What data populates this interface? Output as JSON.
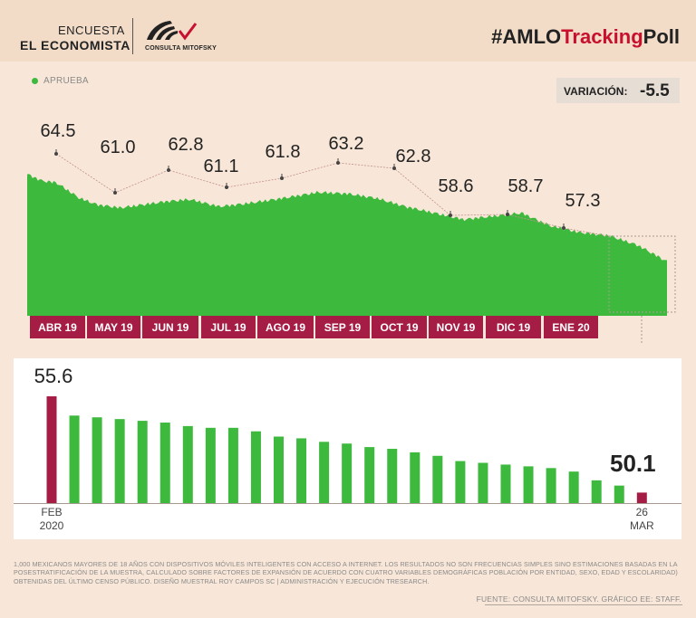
{
  "header": {
    "brand_line1": "ENCUESTA",
    "brand_line2": "EL ECONOMISTA",
    "partner": "CONSULTA MITOFSKY",
    "hashtag_prefix": "#AMLO",
    "hashtag_red": "Tracking",
    "hashtag_suffix": "Poll"
  },
  "legend": {
    "label": "APRUEBA"
  },
  "variacion": {
    "label": "VARIACIÓN:",
    "value": "-5.5"
  },
  "colors": {
    "approve": "#3dba3d",
    "bar": "#3dba3d",
    "highlight": "#a51c45",
    "month": "#a51c45",
    "dark": "#222222"
  },
  "chart_data": [
    {
      "type": "area",
      "series": [
        {
          "name": "APRUEBA"
        }
      ],
      "months": [
        "ABR 19",
        "MAY 19",
        "JUN 19",
        "JUL 19",
        "AGO 19",
        "SEP 19",
        "OCT 19",
        "NOV 19",
        "DIC 19",
        "ENE 20"
      ],
      "monthly_values": [
        64.5,
        61.0,
        62.8,
        61.1,
        61.8,
        63.2,
        62.8,
        58.6,
        58.7,
        57.3
      ],
      "ylim": [
        45,
        68
      ],
      "daily_x": [
        0,
        0.25,
        0.5,
        0.9,
        1.2,
        1.6,
        2,
        2.4,
        2.8,
        3.3,
        3.8,
        4.4,
        5,
        5.5,
        6,
        6.5,
        7,
        7.5,
        8,
        8.5,
        9,
        9.5,
        10,
        10.5,
        11
      ],
      "daily_y": [
        66.0,
        65.0,
        64.7,
        62.3,
        61.3,
        60.8,
        61.3,
        61.8,
        62.1,
        61.0,
        61.5,
        62.3,
        63.2,
        63.0,
        62.3,
        61.0,
        60.0,
        59.0,
        59.5,
        60.0,
        58.0,
        57.0,
        56.5,
        55.0,
        52.5
      ]
    },
    {
      "type": "bar",
      "x_start": "FEB 2020",
      "x_end": "26 MAR",
      "values": [
        55.6,
        54.5,
        54.4,
        54.3,
        54.2,
        54.1,
        53.9,
        53.8,
        53.8,
        53.6,
        53.3,
        53.2,
        53.0,
        52.9,
        52.7,
        52.6,
        52.4,
        52.2,
        51.9,
        51.8,
        51.7,
        51.6,
        51.5,
        51.3,
        50.8,
        50.5,
        50.1
      ],
      "annotated": [
        {
          "index": 0,
          "label": "55.6"
        },
        {
          "index": 26,
          "label": "50.1"
        }
      ],
      "ylim": [
        49.5,
        57
      ]
    }
  ],
  "footnote": "1,000 MEXICANOS MAYORES DE 18 AÑOS CON DISPOSITIVOS MÓVILES INTELIGENTES CON ACCESO A INTERNET. LOS RESULTADOS NO SON FRECUENCIAS SIMPLES SINO ESTIMACIONES BASADAS EN LA POSESTRATIFICACIÓN DE LA MUESTRA, CALCULADO SOBRE FACTORES DE EXPANSIÓN DE ACUERDO CON CUATRO VARIABLES DEMOGRÁFICAS POBLACIÓN POR ENTIDAD, SEXO, EDAD Y ESCOLARIDAD) OBTENIDAS DEL ÚLTIMO CENSO PÚBLICO. DISEÑO MUESTRAL ROY CAMPOS SC | ADMINISTRACIÓN Y EJECUCIÓN TRESEARCH.",
  "source": "FUENTE: CONSULTA MITOFSKY. GRÁFICO EE: STAFF."
}
